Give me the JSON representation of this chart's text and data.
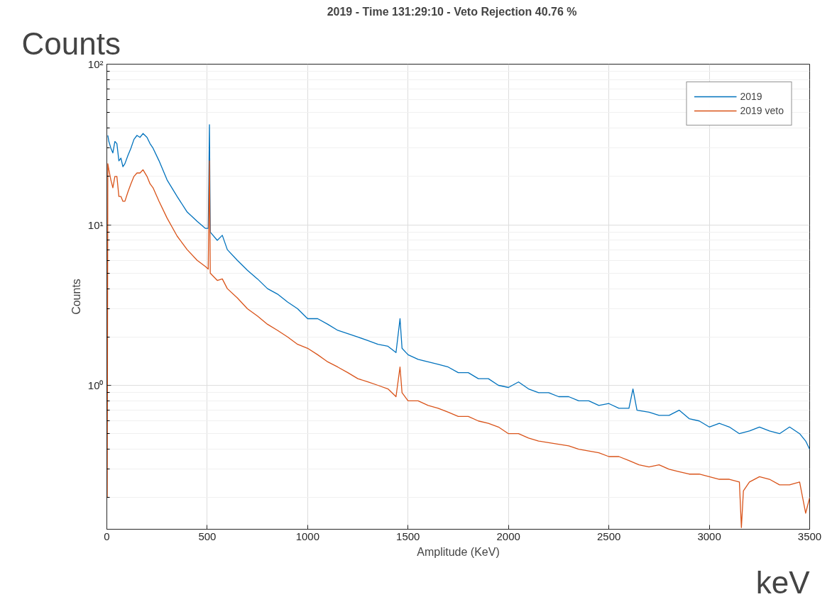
{
  "chart_data": {
    "type": "line",
    "title": "2019  -  Time 131:29:10  -  Veto Rejection 40.76 %",
    "xlabel": "Amplitude (KeV)",
    "ylabel": "Counts",
    "annotations": [
      "Counts",
      "keV"
    ],
    "log": "y",
    "grid": true,
    "legend": "top right",
    "xlim": [
      0,
      3500
    ],
    "xticks": [
      0,
      500,
      1000,
      1500,
      2000,
      2500,
      3000,
      3500
    ],
    "ylim": [
      0.127,
      100
    ],
    "yticks": [
      {
        "value": 1,
        "label": "10⁰"
      },
      {
        "value": 10,
        "label": "10¹"
      },
      {
        "value": 100,
        "label": "10²"
      }
    ],
    "series": [
      {
        "name": "2019",
        "color": "#0072bd",
        "x": [
          5,
          10,
          20,
          30,
          40,
          50,
          60,
          70,
          80,
          90,
          105,
          120,
          135,
          150,
          165,
          180,
          200,
          215,
          230,
          260,
          300,
          350,
          400,
          450,
          490,
          505,
          511,
          515,
          550,
          575,
          600,
          650,
          700,
          750,
          800,
          850,
          900,
          950,
          1000,
          1050,
          1100,
          1150,
          1200,
          1250,
          1300,
          1350,
          1400,
          1440,
          1460,
          1470,
          1500,
          1550,
          1600,
          1650,
          1700,
          1750,
          1800,
          1850,
          1900,
          1950,
          2000,
          2050,
          2100,
          2150,
          2200,
          2250,
          2300,
          2350,
          2400,
          2450,
          2500,
          2550,
          2600,
          2620,
          2640,
          2700,
          2750,
          2800,
          2850,
          2900,
          2950,
          3000,
          3050,
          3100,
          3150,
          3200,
          3250,
          3300,
          3350,
          3400,
          3450,
          3480,
          3500
        ],
        "values": [
          36,
          33,
          30,
          28,
          33,
          32,
          25,
          26,
          23,
          24,
          27,
          30,
          34,
          36,
          35,
          37,
          35,
          32,
          30,
          25,
          19,
          15,
          12,
          10.5,
          9.5,
          9.5,
          42,
          9,
          8,
          8.6,
          7,
          6,
          5.2,
          4.6,
          4.0,
          3.7,
          3.3,
          3.0,
          2.6,
          2.6,
          2.4,
          2.2,
          2.1,
          2.0,
          1.9,
          1.8,
          1.75,
          1.6,
          2.6,
          1.7,
          1.55,
          1.45,
          1.4,
          1.35,
          1.3,
          1.2,
          1.2,
          1.1,
          1.1,
          1.0,
          0.97,
          1.05,
          0.95,
          0.9,
          0.9,
          0.85,
          0.85,
          0.8,
          0.8,
          0.75,
          0.77,
          0.72,
          0.72,
          0.95,
          0.7,
          0.68,
          0.65,
          0.65,
          0.7,
          0.62,
          0.6,
          0.55,
          0.58,
          0.55,
          0.5,
          0.52,
          0.55,
          0.52,
          0.5,
          0.55,
          0.5,
          0.45,
          0.4
        ]
      },
      {
        "name": "2019 veto",
        "color": "#d95319",
        "x": [
          2,
          5,
          10,
          20,
          30,
          40,
          50,
          60,
          70,
          80,
          90,
          105,
          120,
          135,
          150,
          165,
          180,
          200,
          215,
          230,
          260,
          300,
          350,
          400,
          450,
          490,
          505,
          511,
          515,
          550,
          575,
          600,
          650,
          700,
          750,
          800,
          850,
          900,
          950,
          1000,
          1050,
          1100,
          1150,
          1200,
          1250,
          1300,
          1350,
          1400,
          1440,
          1460,
          1470,
          1500,
          1550,
          1600,
          1650,
          1700,
          1750,
          1800,
          1850,
          1900,
          1950,
          2000,
          2050,
          2100,
          2150,
          2200,
          2250,
          2300,
          2350,
          2400,
          2450,
          2500,
          2550,
          2600,
          2650,
          2700,
          2750,
          2800,
          2850,
          2900,
          2950,
          3000,
          3050,
          3100,
          3150,
          3160,
          3170,
          3200,
          3250,
          3300,
          3350,
          3400,
          3450,
          3480,
          3500
        ],
        "values": [
          0.2,
          24,
          22,
          19,
          17,
          20,
          20,
          15,
          15,
          14,
          14,
          16,
          18,
          20,
          21,
          21,
          22,
          20,
          18,
          17,
          14,
          11,
          8.5,
          7,
          6,
          5.5,
          5.3,
          25,
          5,
          4.5,
          4.6,
          4.0,
          3.5,
          3.0,
          2.7,
          2.4,
          2.2,
          2.0,
          1.8,
          1.7,
          1.55,
          1.4,
          1.3,
          1.2,
          1.1,
          1.05,
          1.0,
          0.95,
          0.85,
          1.3,
          0.9,
          0.8,
          0.8,
          0.75,
          0.72,
          0.68,
          0.64,
          0.64,
          0.6,
          0.58,
          0.55,
          0.5,
          0.5,
          0.47,
          0.45,
          0.44,
          0.43,
          0.42,
          0.4,
          0.39,
          0.38,
          0.36,
          0.36,
          0.34,
          0.32,
          0.31,
          0.32,
          0.3,
          0.29,
          0.28,
          0.28,
          0.27,
          0.26,
          0.26,
          0.25,
          0.13,
          0.22,
          0.25,
          0.27,
          0.26,
          0.24,
          0.24,
          0.25,
          0.16,
          0.2
        ]
      }
    ]
  }
}
